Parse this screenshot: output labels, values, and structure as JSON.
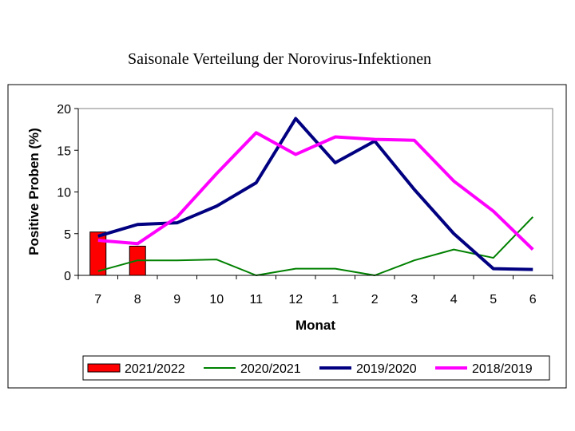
{
  "chart_data": {
    "type": "line",
    "title": "Saisonale Verteilung der Norovirus-Infektionen",
    "xlabel": "Monat",
    "ylabel": "Positive Proben (%)",
    "ylim": [
      0,
      20
    ],
    "yticks": [
      "0",
      "5",
      "10",
      "15",
      "20"
    ],
    "categories": [
      "7",
      "8",
      "9",
      "10",
      "11",
      "12",
      "1",
      "2",
      "3",
      "4",
      "5",
      "6"
    ],
    "grid": false,
    "legend_position": "bottom",
    "series": [
      {
        "name": "2021/2022",
        "kind": "bar",
        "color": "#ff0000",
        "values": [
          5.2,
          3.5,
          null,
          null,
          null,
          null,
          null,
          null,
          null,
          null,
          null,
          null
        ]
      },
      {
        "name": "2020/2021",
        "kind": "line",
        "color": "#008000",
        "values": [
          0.5,
          1.8,
          1.8,
          1.9,
          0.0,
          0.8,
          0.8,
          0.0,
          1.8,
          3.1,
          2.1,
          7.0
        ]
      },
      {
        "name": "2019/2020",
        "kind": "line",
        "color": "#000080",
        "values": [
          4.7,
          6.1,
          6.3,
          8.3,
          11.1,
          18.8,
          13.5,
          16.1,
          10.3,
          5.0,
          0.8,
          0.7
        ]
      },
      {
        "name": "2018/2019",
        "kind": "line",
        "color": "#ff00ff",
        "values": [
          4.2,
          3.8,
          7.0,
          12.2,
          17.1,
          14.5,
          16.6,
          16.3,
          16.2,
          11.3,
          7.7,
          3.1
        ]
      }
    ]
  }
}
